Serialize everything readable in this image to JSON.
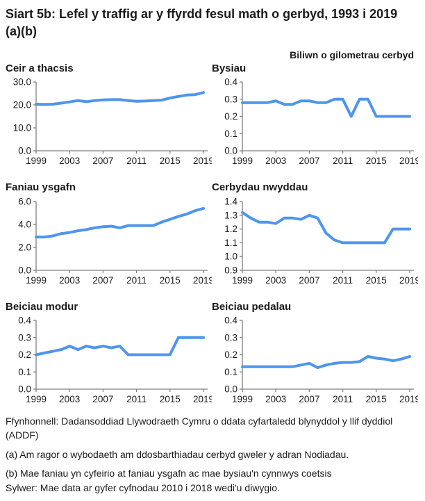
{
  "page_title": "Siart 5b: Lefel y traffig ar y ffyrdd fesul math o gerbyd, 1993 i 2019 (a)(b)",
  "colors": {
    "line": "#4E95EC",
    "axis": "#808080",
    "text": "#1a1a1a"
  },
  "chart_data": {
    "type": "line",
    "unit_label": "Biliwn o gilometrau cerbyd",
    "grid": false,
    "legend": false,
    "x": [
      1999,
      2000,
      2001,
      2002,
      2003,
      2004,
      2005,
      2006,
      2007,
      2008,
      2009,
      2010,
      2011,
      2012,
      2013,
      2014,
      2015,
      2016,
      2017,
      2018,
      2019
    ],
    "xticks": [
      1999,
      2003,
      2007,
      2011,
      2015,
      2019
    ],
    "charts": [
      {
        "title": "Ceir a thacsis",
        "ylim": [
          0,
          30
        ],
        "yticks": [
          30,
          20,
          10,
          0
        ],
        "values": [
          20.3,
          20.2,
          20.3,
          20.8,
          21.3,
          21.9,
          21.4,
          21.9,
          22.2,
          22.3,
          22.3,
          21.9,
          21.6,
          21.7,
          21.9,
          22.1,
          23.0,
          23.7,
          24.3,
          24.5,
          25.4
        ]
      },
      {
        "title": "Bysiau",
        "ylim": [
          0,
          0.4
        ],
        "yticks": [
          0.4,
          0.3,
          0.2,
          0.1,
          0
        ],
        "values": [
          0.28,
          0.28,
          0.28,
          0.28,
          0.29,
          0.27,
          0.27,
          0.29,
          0.29,
          0.28,
          0.28,
          0.3,
          0.3,
          0.2,
          0.3,
          0.3,
          0.2,
          0.2,
          0.2,
          0.2,
          0.2
        ]
      },
      {
        "title": "Faniau ysgafn",
        "ylim": [
          0,
          6
        ],
        "yticks": [
          6,
          4,
          2,
          0
        ],
        "values": [
          2.9,
          2.9,
          3.0,
          3.2,
          3.3,
          3.45,
          3.55,
          3.7,
          3.8,
          3.85,
          3.7,
          3.9,
          3.9,
          3.9,
          3.9,
          4.2,
          4.45,
          4.7,
          4.9,
          5.2,
          5.4
        ]
      },
      {
        "title": "Cerbydau nwyddau",
        "ylim": [
          0.9,
          1.4
        ],
        "yticks": [
          1.4,
          1.3,
          1.2,
          1.1,
          1.0,
          0.9
        ],
        "values": [
          1.32,
          1.28,
          1.25,
          1.25,
          1.24,
          1.28,
          1.28,
          1.27,
          1.3,
          1.28,
          1.17,
          1.12,
          1.1,
          1.1,
          1.1,
          1.1,
          1.1,
          1.1,
          1.2,
          1.2,
          1.2
        ]
      },
      {
        "title": "Beiciau modur",
        "ylim": [
          0,
          0.4
        ],
        "yticks": [
          0.4,
          0.3,
          0.2,
          0.1,
          0
        ],
        "values": [
          0.2,
          0.21,
          0.22,
          0.23,
          0.25,
          0.23,
          0.25,
          0.24,
          0.25,
          0.24,
          0.25,
          0.2,
          0.2,
          0.2,
          0.2,
          0.2,
          0.2,
          0.3,
          0.3,
          0.3,
          0.3
        ]
      },
      {
        "title": "Beiciau pedalau",
        "ylim": [
          0,
          0.4
        ],
        "yticks": [
          0.4,
          0.3,
          0.2,
          0.1,
          0
        ],
        "values": [
          0.13,
          0.13,
          0.13,
          0.13,
          0.13,
          0.13,
          0.13,
          0.14,
          0.15,
          0.125,
          0.14,
          0.15,
          0.155,
          0.155,
          0.16,
          0.19,
          0.18,
          0.175,
          0.165,
          0.175,
          0.19
        ]
      }
    ]
  },
  "footer": {
    "source": "Ffynhonnell: Dadansoddiad Llywodraeth Cymru o ddata cyfartaledd blynyddol y llif dyddiol (ADDF)",
    "note_a": "(a) Am ragor o wybodaeth am ddosbarthiadau cerbyd gweler y adran Nodiadau.",
    "note_b": "(b) Mae faniau yn cyfeirio at faniau ysgafn ac mae bysiau'n cynnwys coetsis",
    "revision_note": "Sylwer: Mae data ar gyfer cyfnodau 2010 i 2018 wedi'u diwygio."
  }
}
